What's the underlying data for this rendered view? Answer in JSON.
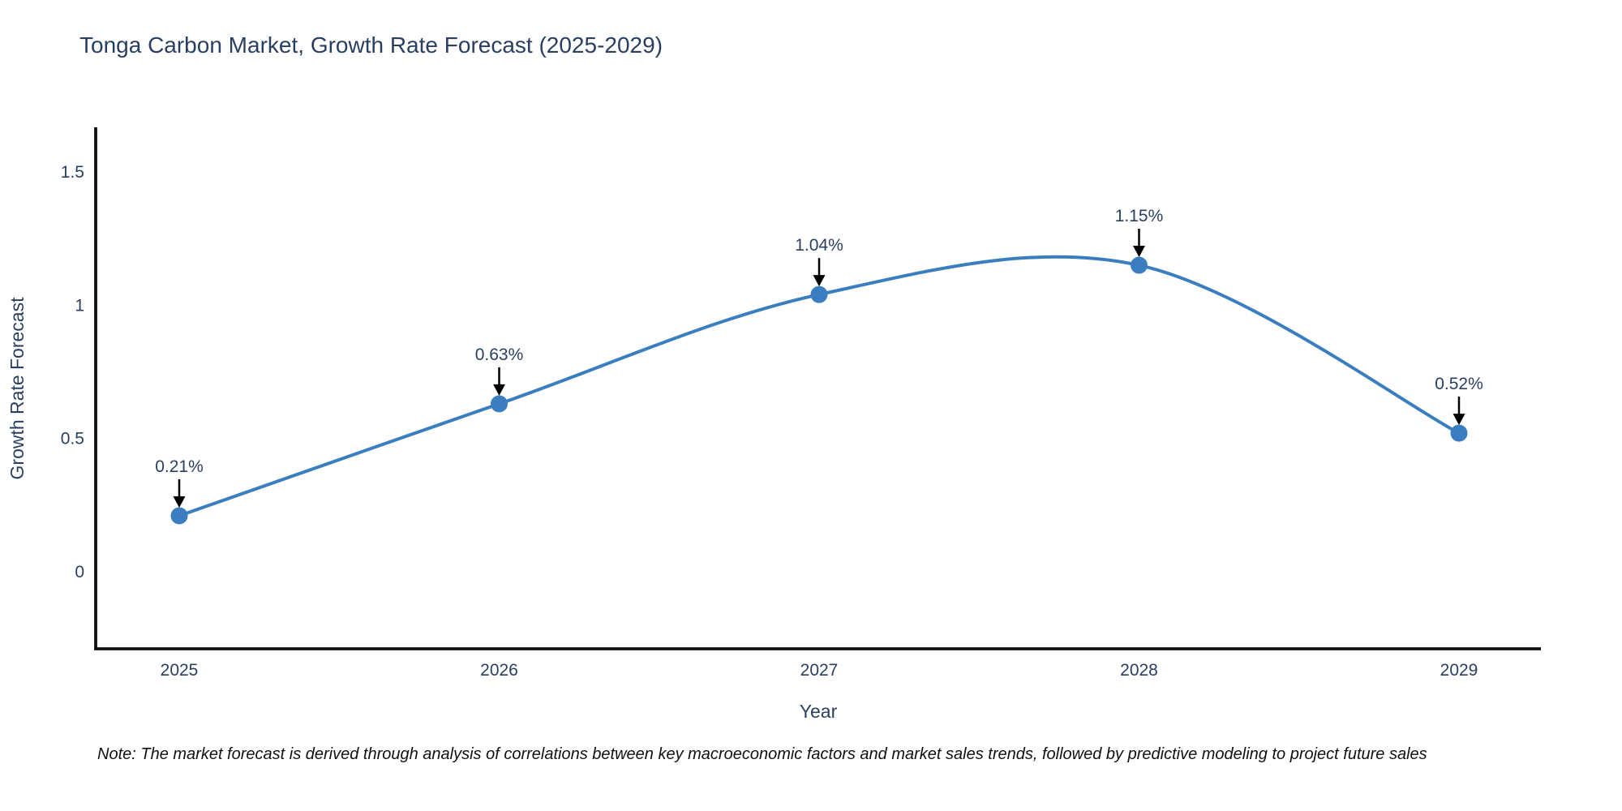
{
  "chart": {
    "title": "Tonga Carbon Market, Growth Rate Forecast (2025-2029)",
    "note": "Note: The market forecast is derived through analysis of correlations between key macroeconomic factors and market sales trends, followed by predictive modeling to project future sales"
  },
  "chart_data": {
    "type": "line",
    "title": "Tonga Carbon Market, Growth Rate Forecast (2025-2029)",
    "xlabel": "Year",
    "ylabel": "Growth Rate Forecast",
    "categories": [
      "2025",
      "2026",
      "2027",
      "2028",
      "2029"
    ],
    "values": [
      0.21,
      0.63,
      1.04,
      1.15,
      0.52
    ],
    "point_labels": [
      "0.21%",
      "0.63%",
      "1.04%",
      "1.15%",
      "0.52%"
    ],
    "yticks": {
      "values": [
        0,
        0.5,
        1,
        1.5
      ],
      "labels": [
        "0",
        "0.5",
        "1",
        "1.5"
      ]
    },
    "ylim": [
      -0.29,
      1.66
    ],
    "xlim_note": "category axis, one slot per year",
    "line_shape": "spline",
    "grid": false,
    "legend_visible": false,
    "colors": {
      "line": "#3a7ebf",
      "marker": "#3a7ebf",
      "axis": "#111111",
      "text": "#2a3f5f",
      "arrow": "#000000",
      "background": "#ffffff"
    }
  }
}
